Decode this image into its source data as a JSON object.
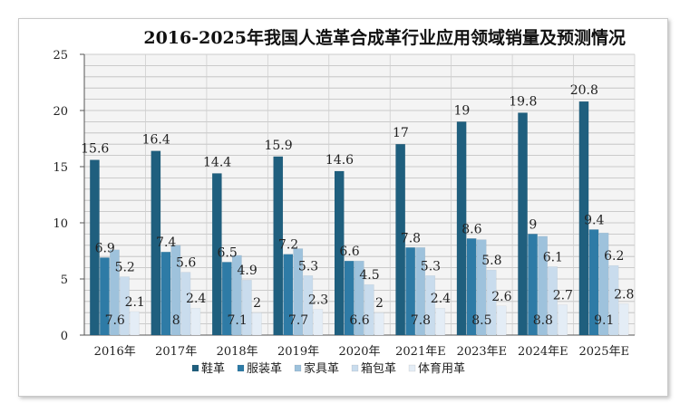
{
  "chart_data": {
    "type": "bar",
    "title": "2016-2025年我国人造革合成革行业应用领域销量及预测情况",
    "categories": [
      "2016年",
      "2017年",
      "2018年",
      "2019年",
      "2020年",
      "2021年E",
      "2023年E",
      "2024年E",
      "2025年E"
    ],
    "ylim": [
      0,
      25
    ],
    "yticks": [
      0,
      5,
      10,
      15,
      20,
      25
    ],
    "grid": true,
    "legend_position": "bottom",
    "series": [
      {
        "name": "鞋革",
        "color": "#1f5f7e",
        "values": [
          15.6,
          16.4,
          14.4,
          15.9,
          14.6,
          17,
          19,
          19.8,
          20.8
        ]
      },
      {
        "name": "服装革",
        "color": "#2e7ba6",
        "values": [
          6.9,
          7.4,
          6.5,
          7.2,
          6.6,
          7.8,
          8.6,
          9,
          9.4
        ]
      },
      {
        "name": "家具革",
        "color": "#9ec2dc",
        "values": [
          7.6,
          8,
          7.1,
          7.7,
          6.6,
          7.8,
          8.5,
          8.8,
          9.1
        ]
      },
      {
        "name": "箱包革",
        "color": "#c9dced",
        "values": [
          5.2,
          5.6,
          4.9,
          5.3,
          4.5,
          5.3,
          5.8,
          6.1,
          6.2
        ]
      },
      {
        "name": "体育用革",
        "color": "#e4edf6",
        "values": [
          2.1,
          2.4,
          2,
          2.3,
          2,
          2.4,
          2.6,
          2.7,
          2.8
        ]
      }
    ],
    "data_labels": [
      {
        "text": "15.6",
        "series": 0,
        "category": 0
      },
      {
        "text": "16.4",
        "series": 0,
        "category": 1
      },
      {
        "text": "14.4",
        "series": 0,
        "category": 2
      },
      {
        "text": "15.9",
        "series": 0,
        "category": 3
      },
      {
        "text": "14.6",
        "series": 0,
        "category": 4
      },
      {
        "text": "17",
        "series": 0,
        "category": 5
      },
      {
        "text": "19",
        "series": 0,
        "category": 6
      },
      {
        "text": "19.8",
        "series": 0,
        "category": 7
      },
      {
        "text": "20.8",
        "series": 0,
        "category": 8
      },
      {
        "text": "6.9",
        "series": 1,
        "category": 0
      },
      {
        "text": "7.4",
        "series": 1,
        "category": 1
      },
      {
        "text": "6.5",
        "series": 1,
        "category": 2
      },
      {
        "text": "7.2",
        "series": 1,
        "category": 3
      },
      {
        "text": "6.6",
        "series": 1,
        "category": 4
      },
      {
        "text": "7.8",
        "series": 1,
        "category": 5
      },
      {
        "text": "8.6",
        "series": 1,
        "category": 6
      },
      {
        "text": "9",
        "series": 1,
        "category": 7
      },
      {
        "text": "9.4",
        "series": 1,
        "category": 8
      },
      {
        "text": "7.6",
        "series": 2,
        "category": 0
      },
      {
        "text": "8",
        "series": 2,
        "category": 1
      },
      {
        "text": "7.1",
        "series": 2,
        "category": 2
      },
      {
        "text": "7.7",
        "series": 2,
        "category": 3
      },
      {
        "text": "6.6",
        "series": 2,
        "category": 4
      },
      {
        "text": "7.8",
        "series": 2,
        "category": 5
      },
      {
        "text": "8.5",
        "series": 2,
        "category": 6
      },
      {
        "text": "8.8",
        "series": 2,
        "category": 7
      },
      {
        "text": "9.1",
        "series": 2,
        "category": 8
      },
      {
        "text": "5.2",
        "series": 3,
        "category": 0
      },
      {
        "text": "5.6",
        "series": 3,
        "category": 1
      },
      {
        "text": "4.9",
        "series": 3,
        "category": 2
      },
      {
        "text": "5.3",
        "series": 3,
        "category": 3
      },
      {
        "text": "4.5",
        "series": 3,
        "category": 4
      },
      {
        "text": "5.3",
        "series": 3,
        "category": 5
      },
      {
        "text": "5.8",
        "series": 3,
        "category": 6
      },
      {
        "text": "6.1",
        "series": 3,
        "category": 7
      },
      {
        "text": "6.2",
        "series": 3,
        "category": 8
      },
      {
        "text": "2.1",
        "series": 4,
        "category": 0
      },
      {
        "text": "2.4",
        "series": 4,
        "category": 1
      },
      {
        "text": "2",
        "series": 4,
        "category": 2
      },
      {
        "text": "2.3",
        "series": 4,
        "category": 3
      },
      {
        "text": "2",
        "series": 4,
        "category": 4
      },
      {
        "text": "2.4",
        "series": 4,
        "category": 5
      },
      {
        "text": "2.6",
        "series": 4,
        "category": 6
      },
      {
        "text": "2.7",
        "series": 4,
        "category": 7
      },
      {
        "text": "2.8",
        "series": 4,
        "category": 8
      }
    ]
  }
}
